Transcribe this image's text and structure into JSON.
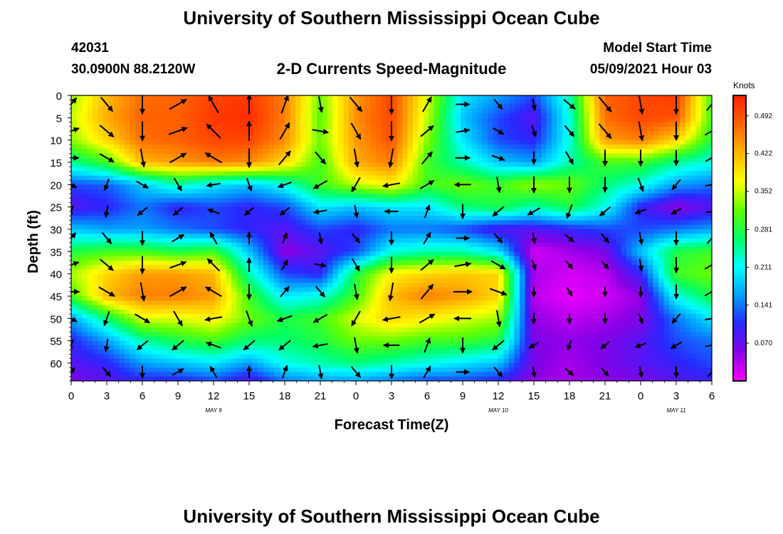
{
  "header": {
    "title_top": "University of Southern Mississippi Ocean Cube",
    "title_bottom": "University of Southern Mississippi Ocean Cube",
    "station_id": "42031",
    "location": "30.0900N  88.2120W",
    "plot_title": "2-D Currents Speed-Magnitude",
    "model_start_label": "Model Start Time",
    "model_start_value": "05/09/2021 Hour 03"
  },
  "colorbar": {
    "units": "Knots",
    "ticks": [
      "0.492",
      "0.422",
      "0.352",
      "0.281",
      "0.211",
      "0.141",
      "0.070"
    ],
    "colors": [
      "#ff00ff",
      "#8a00e6",
      "#2828ff",
      "#00a0ff",
      "#00ffff",
      "#00ff64",
      "#64ff00",
      "#ffff00",
      "#ffb400",
      "#ff6400",
      "#ff1e00"
    ]
  },
  "chart_data": {
    "type": "heatmap",
    "title": "2-D Currents Speed-Magnitude",
    "xlabel": "Forecast Time(Z)",
    "ylabel": "Depth (ft)",
    "x_ticks": [
      "0",
      "3",
      "6",
      "9",
      "12",
      "15",
      "18",
      "21",
      "0",
      "3",
      "6",
      "9",
      "12",
      "15",
      "18",
      "21",
      "0",
      "3",
      "6"
    ],
    "y_ticks": [
      "0",
      "5",
      "10",
      "15",
      "20",
      "25",
      "30",
      "35",
      "40",
      "45",
      "50",
      "55",
      "60"
    ],
    "date_labels": [
      "MAY 9",
      "MAY 10",
      "MAY 11"
    ],
    "x_range_hours": [
      0,
      54
    ],
    "y_range_ft": [
      0,
      64
    ],
    "value_range_knots": [
      0.0,
      0.53
    ],
    "depth_rows_ft": [
      0,
      5,
      10,
      15,
      20,
      25,
      30,
      35,
      40,
      45,
      50,
      55,
      60,
      64
    ],
    "time_cols_hours": [
      0,
      3,
      6,
      9,
      12,
      15,
      18,
      21,
      24,
      27,
      30,
      33,
      36,
      39,
      42,
      45,
      48,
      51,
      54
    ],
    "speed_knots": [
      [
        0.33,
        0.42,
        0.47,
        0.48,
        0.5,
        0.51,
        0.46,
        0.32,
        0.44,
        0.5,
        0.36,
        0.2,
        0.16,
        0.12,
        0.24,
        0.48,
        0.5,
        0.51,
        0.3
      ],
      [
        0.35,
        0.43,
        0.48,
        0.48,
        0.51,
        0.52,
        0.46,
        0.31,
        0.45,
        0.5,
        0.35,
        0.18,
        0.12,
        0.08,
        0.22,
        0.47,
        0.5,
        0.49,
        0.3
      ],
      [
        0.33,
        0.4,
        0.47,
        0.48,
        0.5,
        0.5,
        0.45,
        0.32,
        0.44,
        0.49,
        0.33,
        0.2,
        0.12,
        0.1,
        0.22,
        0.44,
        0.46,
        0.4,
        0.28
      ],
      [
        0.25,
        0.3,
        0.42,
        0.44,
        0.46,
        0.45,
        0.4,
        0.3,
        0.43,
        0.46,
        0.3,
        0.24,
        0.18,
        0.16,
        0.24,
        0.3,
        0.3,
        0.25,
        0.22
      ],
      [
        0.12,
        0.13,
        0.18,
        0.24,
        0.2,
        0.18,
        0.22,
        0.3,
        0.35,
        0.38,
        0.3,
        0.32,
        0.3,
        0.34,
        0.32,
        0.26,
        0.22,
        0.16,
        0.14
      ],
      [
        0.08,
        0.1,
        0.14,
        0.1,
        0.12,
        0.1,
        0.12,
        0.2,
        0.18,
        0.2,
        0.2,
        0.26,
        0.28,
        0.24,
        0.28,
        0.22,
        0.1,
        0.05,
        0.08
      ],
      [
        0.18,
        0.16,
        0.16,
        0.14,
        0.12,
        0.1,
        0.08,
        0.12,
        0.1,
        0.14,
        0.14,
        0.12,
        0.08,
        0.08,
        0.1,
        0.12,
        0.12,
        0.14,
        0.16
      ],
      [
        0.28,
        0.3,
        0.3,
        0.28,
        0.3,
        0.18,
        0.05,
        0.08,
        0.12,
        0.22,
        0.24,
        0.24,
        0.2,
        0.02,
        0.04,
        0.06,
        0.18,
        0.28,
        0.3
      ],
      [
        0.34,
        0.4,
        0.44,
        0.44,
        0.42,
        0.24,
        0.12,
        0.1,
        0.28,
        0.38,
        0.4,
        0.41,
        0.4,
        0.04,
        0.02,
        0.03,
        0.1,
        0.3,
        0.32
      ],
      [
        0.3,
        0.42,
        0.46,
        0.46,
        0.44,
        0.3,
        0.2,
        0.22,
        0.3,
        0.42,
        0.46,
        0.44,
        0.4,
        0.03,
        0.01,
        0.02,
        0.05,
        0.22,
        0.28
      ],
      [
        0.16,
        0.26,
        0.36,
        0.36,
        0.38,
        0.32,
        0.28,
        0.3,
        0.36,
        0.4,
        0.38,
        0.36,
        0.34,
        0.05,
        0.03,
        0.04,
        0.06,
        0.14,
        0.2
      ],
      [
        0.1,
        0.16,
        0.24,
        0.28,
        0.3,
        0.26,
        0.26,
        0.28,
        0.32,
        0.32,
        0.3,
        0.3,
        0.28,
        0.06,
        0.05,
        0.06,
        0.08,
        0.12,
        0.14
      ],
      [
        0.08,
        0.1,
        0.16,
        0.18,
        0.2,
        0.16,
        0.22,
        0.24,
        0.26,
        0.24,
        0.22,
        0.2,
        0.18,
        0.06,
        0.04,
        0.06,
        0.08,
        0.1,
        0.12
      ],
      [
        0.06,
        0.08,
        0.1,
        0.1,
        0.12,
        0.08,
        0.14,
        0.16,
        0.16,
        0.14,
        0.12,
        0.12,
        0.1,
        0.05,
        0.04,
        0.05,
        0.06,
        0.08,
        0.1
      ]
    ],
    "vector_direction_deg": [
      [
        40,
        140,
        180,
        60,
        330,
        0,
        20,
        170,
        140,
        180,
        30,
        90,
        140,
        170,
        130,
        140,
        170,
        180,
        40
      ],
      [
        70,
        130,
        180,
        70,
        315,
        0,
        30,
        100,
        150,
        180,
        50,
        80,
        120,
        160,
        140,
        140,
        170,
        180,
        60
      ],
      [
        90,
        120,
        170,
        60,
        300,
        180,
        40,
        140,
        170,
        190,
        40,
        90,
        110,
        180,
        150,
        180,
        180,
        180,
        60
      ],
      [
        120,
        200,
        120,
        150,
        260,
        160,
        250,
        240,
        210,
        260,
        60,
        270,
        170,
        180,
        180,
        180,
        160,
        220,
        80
      ],
      [
        200,
        190,
        230,
        230,
        290,
        230,
        230,
        260,
        170,
        270,
        20,
        180,
        230,
        240,
        200,
        230,
        250,
        240,
        80
      ]
    ]
  }
}
